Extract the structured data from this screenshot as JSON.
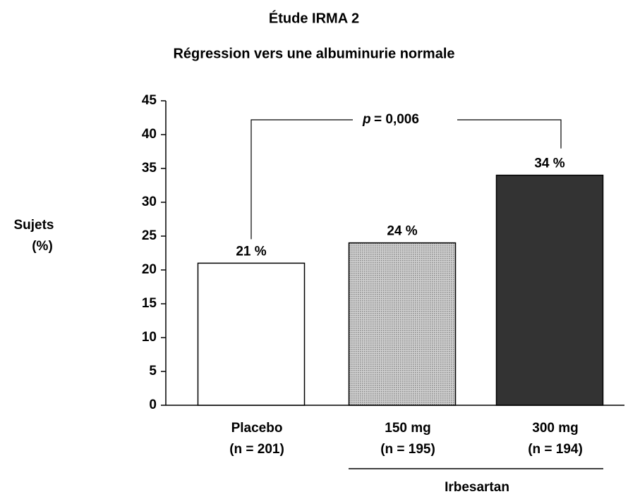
{
  "chart_data": {
    "type": "bar",
    "title": "Étude IRMA 2",
    "subtitle": "Régression vers une albuminurie normale",
    "y_label": [
      "Sujets",
      "(%)"
    ],
    "categories": [
      [
        "Placebo",
        "(n = 201)"
      ],
      [
        "150 mg",
        "(n = 195)"
      ],
      [
        "300 mg",
        "(n = 194)"
      ]
    ],
    "values": [
      21,
      24,
      34
    ],
    "value_labels": [
      "21 %",
      "24 %",
      "34 %"
    ],
    "colors": [
      "#ffffff",
      "#b4b4b4",
      "#333333"
    ],
    "group_label": "Irbesartan",
    "annotation_symbol": "p",
    "annotation_text": "= 0,006",
    "ylim": [
      0,
      45
    ],
    "yticks": [
      0,
      5,
      10,
      15,
      20,
      25,
      30,
      35,
      40,
      45
    ]
  }
}
